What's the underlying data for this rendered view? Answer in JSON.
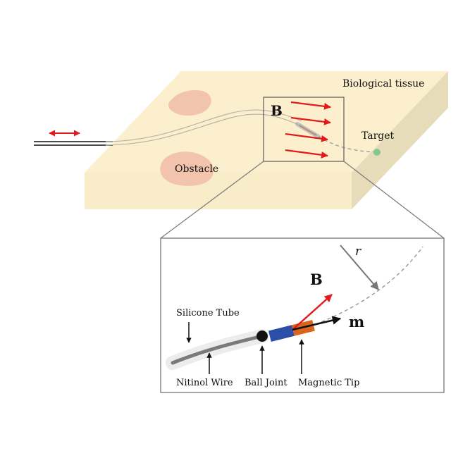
{
  "labels": {
    "tissue": "Biological tissue",
    "target": "Target",
    "obstacle": "Obstacle",
    "field_top": "B",
    "field_inset": "B",
    "moment": "m",
    "radius": "r",
    "silicone_tube": "Silicone Tube",
    "nitinol_wire": "Nitinol Wire",
    "ball_joint": "Ball Joint",
    "magnetic_tip": "Magnetic Tip"
  },
  "colors": {
    "tissue_top": "#fbefce",
    "tissue_side": "#e6dcb9",
    "obstacle": "#f2c4ae",
    "field_arrow": "#e31a1c",
    "target_dot": "#7fc88f",
    "magnet_blue": "#2b4fa8",
    "magnet_orange": "#d9651f"
  }
}
